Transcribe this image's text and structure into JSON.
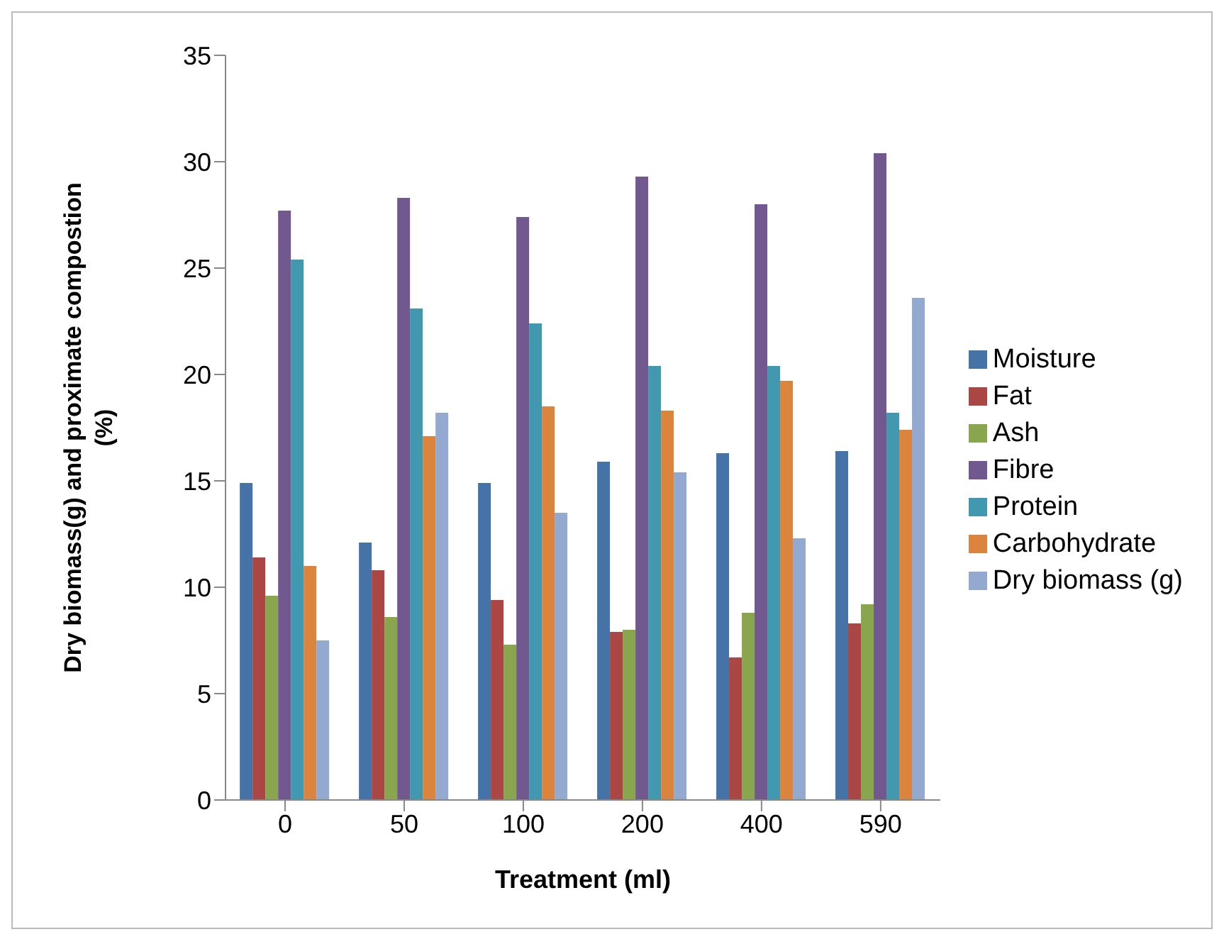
{
  "chart_data": {
    "type": "bar",
    "xlabel": "Treatment (ml)",
    "ylabel": "Dry biomass(g) and proximate compostion (%)",
    "categories": [
      "0",
      "50",
      "100",
      "200",
      "400",
      "590"
    ],
    "series": [
      {
        "name": "Moisture",
        "color": "#4572a7",
        "values": [
          14.9,
          12.1,
          14.9,
          15.9,
          16.3,
          16.4
        ]
      },
      {
        "name": "Fat",
        "color": "#aa4643",
        "values": [
          11.4,
          10.8,
          9.4,
          7.9,
          6.7,
          8.3
        ]
      },
      {
        "name": "Ash",
        "color": "#89a54e",
        "values": [
          9.6,
          8.6,
          7.3,
          8.0,
          8.8,
          9.2
        ]
      },
      {
        "name": "Fibre",
        "color": "#71588f",
        "values": [
          27.7,
          28.3,
          27.4,
          29.3,
          28.0,
          30.4
        ]
      },
      {
        "name": "Protein",
        "color": "#4198af",
        "values": [
          25.4,
          23.1,
          22.4,
          20.4,
          20.4,
          18.2
        ]
      },
      {
        "name": "Carbohydrate",
        "color": "#db843d",
        "values": [
          11.0,
          17.1,
          18.5,
          18.3,
          19.7,
          17.4
        ]
      },
      {
        "name": "Dry biomass (g)",
        "color": "#93a9cf",
        "values": [
          7.5,
          18.2,
          13.5,
          15.4,
          12.3,
          23.6
        ]
      }
    ],
    "ylim": [
      0,
      35
    ],
    "yticks": [
      0,
      5,
      10,
      15,
      20,
      25,
      30,
      35
    ],
    "grid": false,
    "legend": "right"
  }
}
